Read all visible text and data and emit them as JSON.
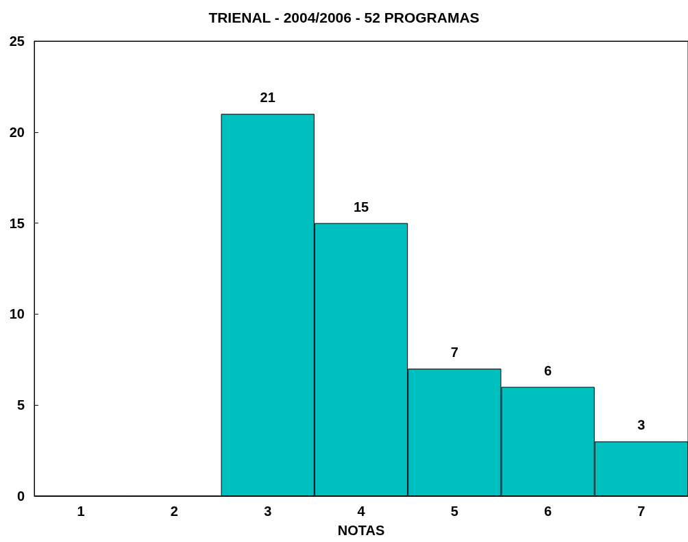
{
  "chart_data": {
    "type": "bar",
    "title": "TRIENAL - 2004/2006 - 52 PROGRAMAS",
    "xlabel": "NOTAS",
    "categories": [
      "1",
      "2",
      "3",
      "4",
      "5",
      "6",
      "7"
    ],
    "values": [
      0,
      0,
      21,
      15,
      7,
      6,
      3
    ],
    "value_labels": [
      null,
      null,
      "21",
      "15",
      "7",
      "6",
      "3"
    ],
    "color": "#00bfbf",
    "ylim": [
      0,
      25
    ],
    "yticks": [
      0,
      5,
      10,
      15,
      20,
      25
    ],
    "grid": false
  }
}
